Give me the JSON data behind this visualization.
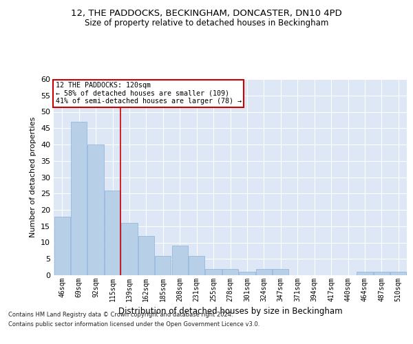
{
  "title_line1": "12, THE PADDOCKS, BECKINGHAM, DONCASTER, DN10 4PD",
  "title_line2": "Size of property relative to detached houses in Beckingham",
  "xlabel": "Distribution of detached houses by size in Beckingham",
  "ylabel": "Number of detached properties",
  "bar_labels": [
    "46sqm",
    "69sqm",
    "92sqm",
    "115sqm",
    "139sqm",
    "162sqm",
    "185sqm",
    "208sqm",
    "231sqm",
    "255sqm",
    "278sqm",
    "301sqm",
    "324sqm",
    "347sqm",
    "371sqm",
    "394sqm",
    "417sqm",
    "440sqm",
    "464sqm",
    "487sqm",
    "510sqm"
  ],
  "bar_values": [
    18,
    47,
    40,
    26,
    16,
    12,
    6,
    9,
    6,
    2,
    2,
    1,
    2,
    2,
    0,
    0,
    0,
    0,
    1,
    1,
    1
  ],
  "bar_color": "#b8cfe8",
  "bar_edgecolor": "#8ab0d8",
  "background_color": "#dde7f5",
  "grid_color": "#ffffff",
  "vline_color": "#cc0000",
  "vline_x": 3.475,
  "annotation_lines": [
    "12 THE PADDOCKS: 120sqm",
    "← 58% of detached houses are smaller (109)",
    "41% of semi-detached houses are larger (78) →"
  ],
  "annotation_box_facecolor": "#ffffff",
  "annotation_box_edgecolor": "#cc0000",
  "footer_line1": "Contains HM Land Registry data © Crown copyright and database right 2024.",
  "footer_line2": "Contains public sector information licensed under the Open Government Licence v3.0.",
  "ylim": [
    0,
    60
  ],
  "yticks": [
    0,
    5,
    10,
    15,
    20,
    25,
    30,
    35,
    40,
    45,
    50,
    55,
    60
  ]
}
